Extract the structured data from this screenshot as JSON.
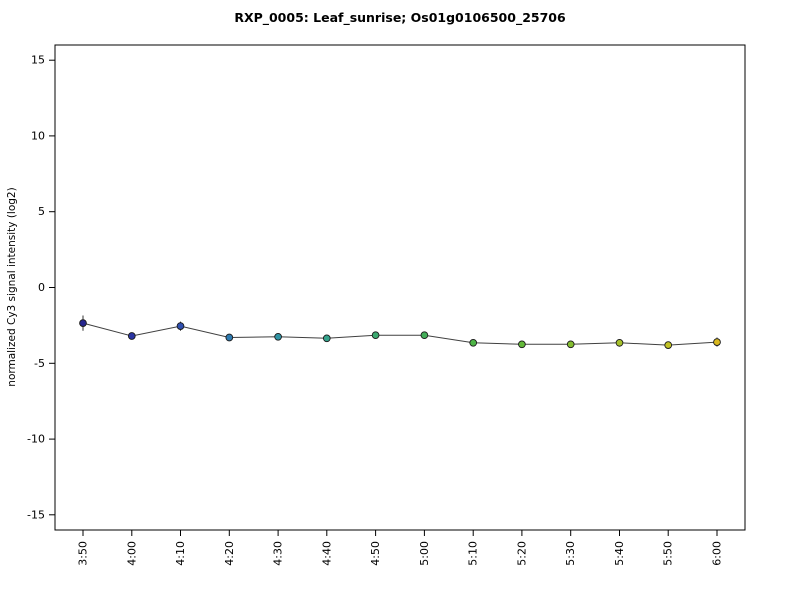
{
  "chart": {
    "title": "RXP_0005: Leaf_sunrise; Os01g0106500_25706",
    "ylabel": "normalized Cy3 signal intensity (log2)"
  },
  "chart_data": {
    "type": "line",
    "title": "RXP_0005: Leaf_sunrise; Os01g0106500_25706",
    "xlabel": "",
    "ylabel": "normalized Cy3 signal intensity (log2)",
    "categories": [
      "3:50",
      "4:00",
      "4:10",
      "4:20",
      "4:30",
      "4:40",
      "4:50",
      "5:00",
      "5:10",
      "5:20",
      "5:30",
      "5:40",
      "5:50",
      "6:00"
    ],
    "values": [
      -2.35,
      -3.2,
      -2.55,
      -3.3,
      -3.25,
      -3.35,
      -3.15,
      -3.15,
      -3.65,
      -3.75,
      -3.75,
      -3.65,
      -3.8,
      -3.6
    ],
    "errors": [
      0.5,
      0.15,
      0.3,
      0.12,
      0.12,
      0.2,
      0.15,
      0.12,
      0.12,
      0.1,
      0.12,
      0.25,
      0.1,
      0.3
    ],
    "point_colors": [
      "#26268f",
      "#2b35a3",
      "#2f4fb0",
      "#2e7ab0",
      "#2f93a4",
      "#35a38c",
      "#3ba96f",
      "#43ae59",
      "#4db446",
      "#63b93a",
      "#84bd30",
      "#a6c12a",
      "#c2c326",
      "#d9b81f"
    ],
    "line_color": "#404040",
    "error_bar_color": "#333333",
    "point_outline_color": "#1a1a1a",
    "axis_color": "#000000",
    "ylim": [
      -16,
      16
    ],
    "yticks": [
      -15,
      -10,
      -5,
      0,
      5,
      10,
      15
    ],
    "grid": false,
    "legend": false
  }
}
